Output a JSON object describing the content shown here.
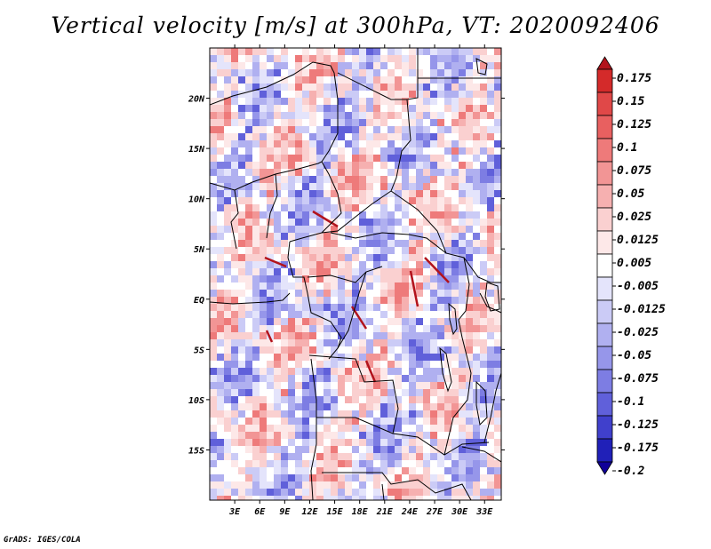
{
  "chart_data": {
    "type": "heatmap",
    "title": "Vertical velocity [m/s] at 300hPa, VT: 2020092406",
    "variable": "Vertical velocity",
    "units": "m/s",
    "level": "300hPa",
    "valid_time": "2020092406",
    "lon_range": [
      0,
      35
    ],
    "lat_range": [
      -20,
      25
    ],
    "x_ticks": [
      "3E",
      "6E",
      "9E",
      "12E",
      "15E",
      "18E",
      "21E",
      "24E",
      "27E",
      "30E",
      "33E"
    ],
    "x_tick_values": [
      3,
      6,
      9,
      12,
      15,
      18,
      21,
      24,
      27,
      30,
      33
    ],
    "y_ticks": [
      "20N",
      "15N",
      "10N",
      "5N",
      "EQ",
      "5S",
      "10S",
      "15S"
    ],
    "y_tick_values": [
      20,
      15,
      10,
      5,
      0,
      -5,
      -10,
      -15
    ],
    "colorbar": {
      "levels": [
        "0.175",
        "0.15",
        "0.125",
        "0.1",
        "0.075",
        "0.05",
        "0.025",
        "0.0125",
        "0.005",
        "-0.005",
        "-0.0125",
        "-0.025",
        "-0.05",
        "-0.075",
        "-0.1",
        "-0.125",
        "-0.175",
        "-0.2"
      ],
      "colors": [
        "#b2131c",
        "#d42a2a",
        "#e04848",
        "#e86060",
        "#ee7a7a",
        "#f29595",
        "#f6b0b0",
        "#fad0d0",
        "#fde8e8",
        "#ffffff",
        "#e4e4fb",
        "#cbcbf6",
        "#b0b0f0",
        "#9696ea",
        "#7d7de3",
        "#6060da",
        "#4040cc",
        "#2020b8",
        "#100098"
      ]
    }
  },
  "footer": "GrADS: IGES/COLA"
}
